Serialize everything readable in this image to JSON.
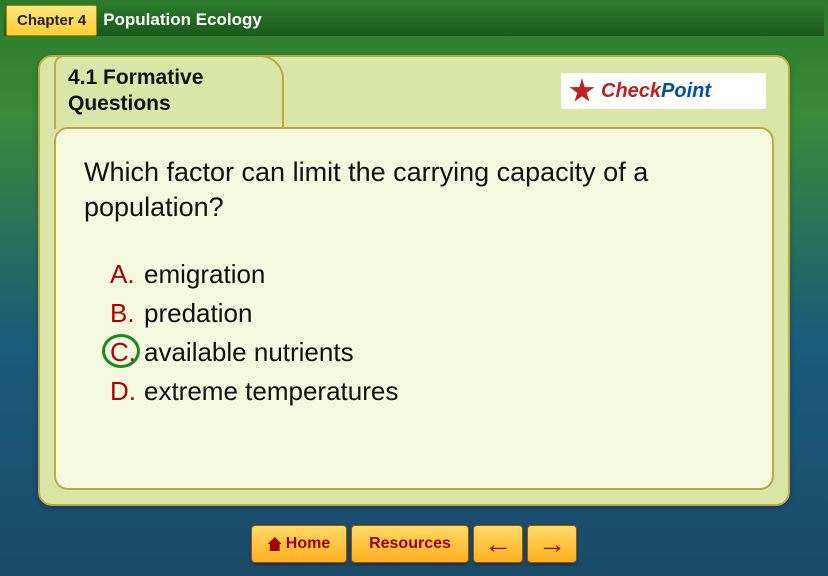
{
  "header": {
    "chapter_label": "Chapter 4",
    "title": "Population Ecology"
  },
  "tab": {
    "label": "4.1 Formative Questions"
  },
  "checkpoint": {
    "part1": "Check",
    "part2": "Point"
  },
  "question": "Which factor can limit the carrying capacity of a population?",
  "options": [
    {
      "letter": "A.",
      "text": "emigration",
      "correct": false
    },
    {
      "letter": "B.",
      "text": "predation",
      "correct": false
    },
    {
      "letter": "C.",
      "text": "available nutrients",
      "correct": true
    },
    {
      "letter": "D.",
      "text": "extreme temperatures",
      "correct": false
    }
  ],
  "footer": {
    "home": "Home",
    "resources": "Resources",
    "prev": "←",
    "next": "→"
  },
  "colors": {
    "letter_color": "#b00000",
    "circle_color": "#1a8a1a",
    "card_outer_bg": "#d9e6a8",
    "card_inner_bg": "#f4f9e0"
  }
}
